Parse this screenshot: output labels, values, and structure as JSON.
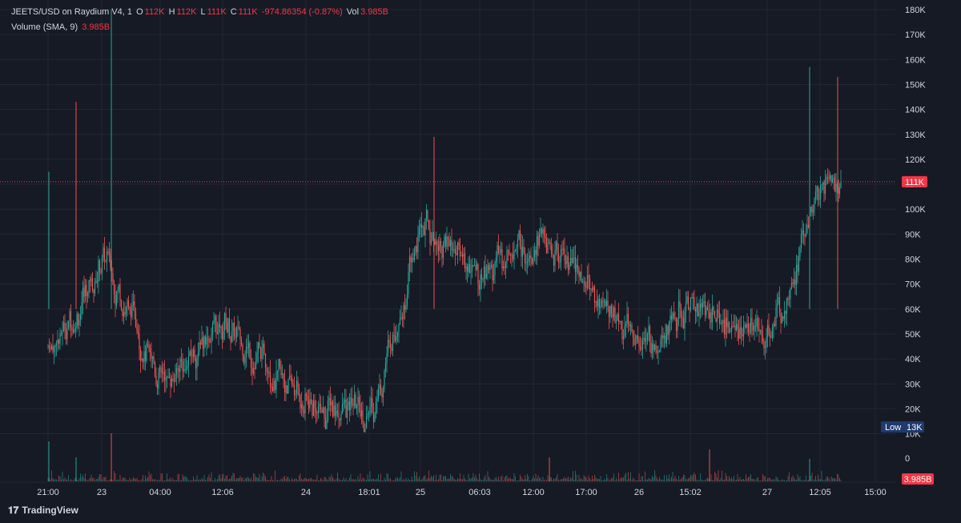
{
  "legend": {
    "symbol": "JEETS/USD on Raydium V4, 1",
    "o_label": "O",
    "o_value": "112K",
    "h_label": "H",
    "h_value": "112K",
    "l_label": "L",
    "l_value": "111K",
    "c_label": "C",
    "c_value": "111K",
    "change": "-974.86354 (-0.87%)",
    "vol_label": "Vol",
    "vol_value": "3.985B",
    "volume_indicator": "Volume (SMA, 9)",
    "volume_indicator_value": "3.985B"
  },
  "price_tag": "111K",
  "low_tag": {
    "label": "Low",
    "value": "13K"
  },
  "volume_tag": "3.985B",
  "zero_label": "0",
  "brand": "TradingView",
  "colors": {
    "background": "#161a25",
    "grid": "#232734",
    "up": "#26a69a",
    "down": "#ef5350",
    "price_line": "#f23645",
    "low_tag": "#1e3a6e",
    "text": "#d1d4dc"
  },
  "chart_data": {
    "type": "candlestick",
    "y_unit": "USD market value (K)",
    "yticks": [
      "180K",
      "170K",
      "160K",
      "150K",
      "140K",
      "130K",
      "120K",
      "110K",
      "100K",
      "90K",
      "80K",
      "70K",
      "60K",
      "50K",
      "40K",
      "30K",
      "20K",
      "10K"
    ],
    "y_range": [
      0,
      180
    ],
    "xticks": [
      "21:00",
      "23",
      "04:00",
      "12:06",
      "24",
      "18:01",
      "25",
      "06:03",
      "12:00",
      "17:00",
      "26",
      "15:02",
      "27",
      "12:05",
      "15:00"
    ],
    "current_price": 111,
    "low": 13,
    "approx_close_path": [
      {
        "x": "21:00",
        "y": 45
      },
      {
        "x": "22",
        "y": 60
      },
      {
        "x": "23",
        "y": 82
      },
      {
        "x": "04:00",
        "y": 30
      },
      {
        "x": "12:06",
        "y": 55
      },
      {
        "x": "24",
        "y": 22
      },
      {
        "x": "18:01",
        "y": 18
      },
      {
        "x": "25",
        "y": 95
      },
      {
        "x": "06:03",
        "y": 72
      },
      {
        "x": "12:00",
        "y": 90
      },
      {
        "x": "17:00",
        "y": 70
      },
      {
        "x": "26",
        "y": 45
      },
      {
        "x": "15:02",
        "y": 62
      },
      {
        "x": "27",
        "y": 48
      },
      {
        "x": "12:05",
        "y": 110
      },
      {
        "x": "end",
        "y": 111
      }
    ],
    "spikes": [
      {
        "x": "21:00",
        "high": 115
      },
      {
        "x": "22",
        "high": 143
      },
      {
        "x": "23",
        "high": 180
      },
      {
        "x": "25",
        "high": 129
      },
      {
        "x": "12:05",
        "high": 157
      },
      {
        "x": "12:05",
        "high": 153
      }
    ]
  }
}
